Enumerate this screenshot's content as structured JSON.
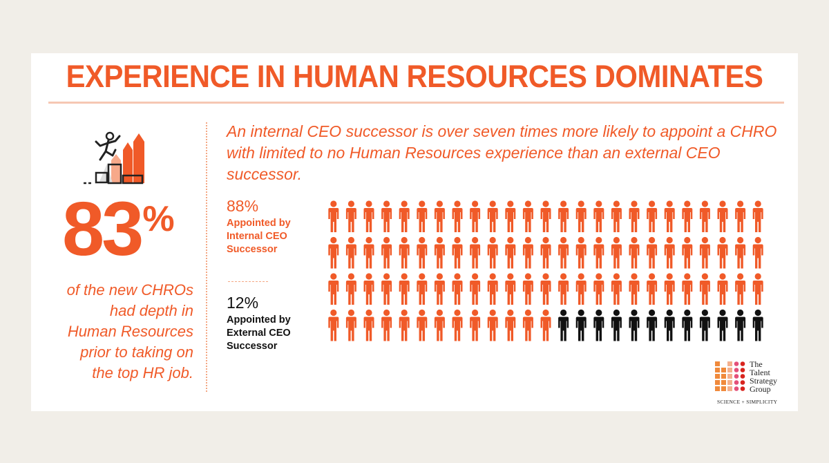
{
  "header": {
    "title": "EXPERIENCE IN HUMAN RESOURCES DOMINATES"
  },
  "left": {
    "icon": "climbing-stairs-growth-icon",
    "stat_number": "83",
    "stat_symbol": "%",
    "caption_lines": [
      "of the new CHROs",
      "had depth in",
      "Human Resources",
      "prior to taking on",
      "the top HR job."
    ]
  },
  "right": {
    "lead_text": "An internal CEO successor is over seven times more likely to appoint a CHRO with limited to no Human Resources experience than an external CEO successor.",
    "internal": {
      "percent": "88%",
      "label_lines": [
        "Appointed by",
        "Internal CEO",
        "Successor"
      ]
    },
    "external": {
      "percent": "12%",
      "label_lines": [
        "Appointed by",
        "External CEO",
        "Successor"
      ]
    }
  },
  "pictogram": {
    "icon": "person-icon",
    "total": 100,
    "columns": 25,
    "rows": 4,
    "internal_count": 88,
    "external_count": 12,
    "internal_color": "#f05a28",
    "external_color": "#111111"
  },
  "logo": {
    "lines": [
      "The",
      "Talent",
      "Strategy",
      "Group"
    ],
    "tagline": "SCIENCE + SIMPLICITY"
  },
  "colors": {
    "accent": "#f05a28",
    "background": "#f1eee8",
    "card": "#ffffff"
  }
}
